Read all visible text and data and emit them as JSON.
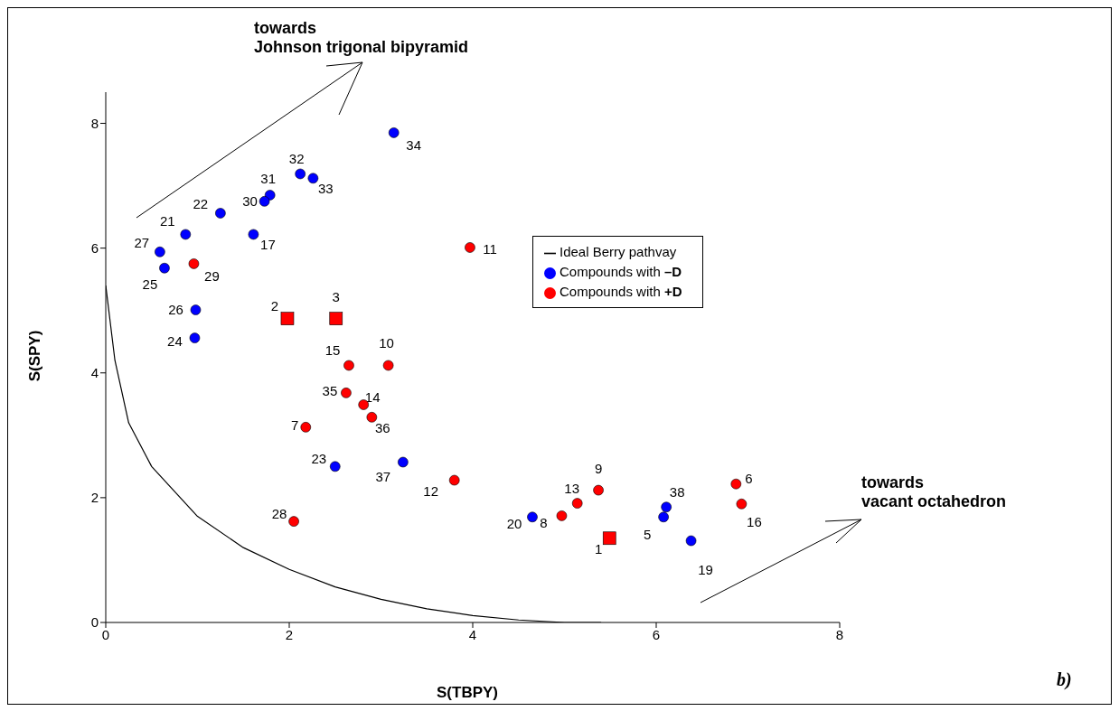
{
  "chart_data": {
    "type": "scatter",
    "xlabel": "S(TBPY)",
    "ylabel": "S(SPY)",
    "xlim": [
      0,
      8
    ],
    "ylim": [
      0,
      8.5
    ],
    "xticks": [
      0,
      2,
      4,
      6,
      8
    ],
    "yticks": [
      0,
      2,
      4,
      6,
      8
    ],
    "legend": "top right",
    "marker": "circle",
    "annotations": [
      "towards\nJohnson trigonal bipyramid",
      "towards\nvacant octahedron",
      "b)",
      {
        "text": "34",
        "x": 3.14,
        "y": 7.85
      },
      {
        "text": "32",
        "x": 2.12,
        "y": 7.19
      },
      {
        "text": "33",
        "x": 2.26,
        "y": 7.12
      },
      {
        "text": "31",
        "x": 1.79,
        "y": 6.85
      },
      {
        "text": "30",
        "x": 1.73,
        "y": 6.75
      },
      {
        "text": "22",
        "x": 1.25,
        "y": 6.56
      },
      {
        "text": "17",
        "x": 1.61,
        "y": 6.22
      },
      {
        "text": "21",
        "x": 0.87,
        "y": 6.22
      },
      {
        "text": "27",
        "x": 0.59,
        "y": 5.94
      },
      {
        "text": "25",
        "x": 0.64,
        "y": 5.68
      },
      {
        "text": "26",
        "x": 0.98,
        "y": 5.01
      },
      {
        "text": "24",
        "x": 0.97,
        "y": 4.56
      },
      {
        "text": "23",
        "x": 2.5,
        "y": 2.5
      },
      {
        "text": "37",
        "x": 3.24,
        "y": 2.57
      },
      {
        "text": "20",
        "x": 4.65,
        "y": 1.69
      },
      {
        "text": "5",
        "x": 6.08,
        "y": 1.69
      },
      {
        "text": "38",
        "x": 6.11,
        "y": 1.85
      },
      {
        "text": "19",
        "x": 6.38,
        "y": 1.31
      },
      {
        "text": "11",
        "x": 3.97,
        "y": 6.01
      },
      {
        "text": "29",
        "x": 0.96,
        "y": 5.75
      },
      {
        "text": "15",
        "x": 2.65,
        "y": 4.12
      },
      {
        "text": "10",
        "x": 3.08,
        "y": 4.12
      },
      {
        "text": "35",
        "x": 2.62,
        "y": 3.68
      },
      {
        "text": "14",
        "x": 2.81,
        "y": 3.49
      },
      {
        "text": "36",
        "x": 2.9,
        "y": 3.29
      },
      {
        "text": "7",
        "x": 2.18,
        "y": 3.13
      },
      {
        "text": "12",
        "x": 3.8,
        "y": 2.28
      },
      {
        "text": "28",
        "x": 2.05,
        "y": 1.62
      },
      {
        "text": "8",
        "x": 4.97,
        "y": 1.71
      },
      {
        "text": "13",
        "x": 5.14,
        "y": 1.91
      },
      {
        "text": "9",
        "x": 5.37,
        "y": 2.12
      },
      {
        "text": "6",
        "x": 6.87,
        "y": 2.22
      },
      {
        "text": "16",
        "x": 6.93,
        "y": 1.9
      },
      {
        "text": "2",
        "x": 1.98,
        "y": 4.87
      },
      {
        "text": "3",
        "x": 2.51,
        "y": 4.87
      },
      {
        "text": "1",
        "x": 5.49,
        "y": 1.35
      }
    ],
    "series": [
      {
        "name": "Ideal Berry pathvay",
        "type": "line",
        "color": "#000000",
        "marker": "none",
        "x": [
          0,
          0.1,
          0.25,
          0.5,
          1,
          1.5,
          2,
          2.5,
          3,
          3.5,
          4,
          4.5,
          5,
          5.4
        ],
        "values": [
          5.4,
          4.2,
          3.2,
          2.5,
          1.7,
          1.2,
          0.85,
          0.57,
          0.37,
          0.22,
          0.11,
          0.04,
          0,
          0
        ]
      },
      {
        "name": "Compounds with –D",
        "color": "#0000ff",
        "x": [
          3.14,
          2.12,
          2.26,
          1.79,
          1.73,
          1.25,
          1.61,
          0.87,
          0.59,
          0.64,
          0.98,
          0.97,
          2.5,
          3.24,
          4.65,
          6.08,
          6.11,
          6.38
        ],
        "values": [
          7.85,
          7.19,
          7.12,
          6.85,
          6.75,
          6.56,
          6.22,
          6.22,
          5.94,
          5.68,
          5.01,
          4.56,
          2.5,
          2.57,
          1.69,
          1.69,
          1.85,
          1.31
        ]
      },
      {
        "name": "Compounds with +D",
        "color": "#ff0000",
        "x": [
          3.97,
          0.96,
          2.65,
          3.08,
          2.62,
          2.81,
          2.9,
          2.18,
          3.8,
          2.05,
          4.97,
          5.14,
          5.37,
          6.87,
          6.93
        ],
        "values": [
          6.01,
          5.75,
          4.12,
          4.12,
          3.68,
          3.49,
          3.29,
          3.13,
          2.28,
          1.62,
          1.71,
          1.91,
          2.12,
          2.22,
          1.9
        ]
      },
      {
        "color": "#ff0000",
        "marker": "square",
        "x": [
          1.98,
          2.51,
          5.49
        ],
        "values": [
          4.87,
          4.87,
          1.35
        ]
      }
    ]
  }
}
